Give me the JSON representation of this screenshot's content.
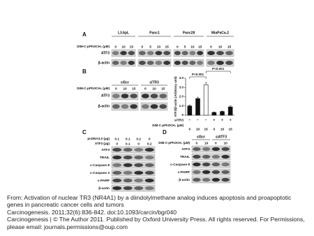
{
  "panel_a": {
    "label": "A",
    "cell_lines": [
      "L3.6pL",
      "Panc1",
      "Panc28",
      "MiaPaCa-2"
    ],
    "treatment_label": "DIM-C-pPhOCH₃ (μM)",
    "doses": [
      [
        "0",
        "10",
        "15"
      ],
      [
        "0",
        "5",
        "10",
        "15"
      ],
      [
        "0",
        "5",
        "10",
        "15"
      ],
      [
        "0",
        "10",
        "15"
      ]
    ],
    "rows": [
      "ATF3",
      "β-actin"
    ]
  },
  "panel_b": {
    "label": "B",
    "groups": [
      "siScr",
      "siTR3"
    ],
    "treatment_label": "DIM-C-pPhOCH₃ (μM)",
    "doses": [
      "0",
      "10",
      "15"
    ],
    "rows": [
      "ATF3",
      "β-actin"
    ],
    "chart": {
      "type": "bar",
      "y_label": "ATF3/β-actin (Arbitrary unit)",
      "values": [
        1.0,
        1.8,
        3.3,
        0.3,
        0.4,
        0.9
      ],
      "errors": [
        0.1,
        0.15,
        0.2,
        0.05,
        0.05,
        0.1
      ],
      "colors": [
        "#111111",
        "#111111",
        "#ffffff",
        "#111111",
        "#111111",
        "#111111"
      ],
      "ylim": [
        0,
        4
      ],
      "yticks": [
        0,
        {
          "value": 1,
          "label": "1.0"
        },
        {
          "value": 2,
          "label": "2.0"
        },
        {
          "value": 3,
          "label": "3.0"
        },
        {
          "value": 4,
          "label": "4.0"
        }
      ],
      "sirna_label": "siTR3",
      "sirna": [
        "−",
        "−",
        "−",
        "+",
        "+",
        "+"
      ],
      "dose_label": "DIM-C-pPhOCH₃ (μM)",
      "doses": [
        "0",
        "10",
        "15",
        "0",
        "10",
        "15"
      ],
      "annotations": [
        "P<0.001",
        "P<0.001"
      ]
    }
  },
  "panel_c": {
    "label": "C",
    "pcdna_label": "pcDNA3.0 (μg)",
    "pcdna": [
      "0.1",
      "0.1",
      "0.2",
      "0"
    ],
    "atf3_label": "ATF3 (μg)",
    "atf3": [
      "0",
      "0.1",
      "0",
      "0.2"
    ],
    "rows": [
      "ATF3",
      "TRAIL",
      "c-Caspase 8",
      "c-Caspase 3",
      "c-PARP",
      "β-actin"
    ]
  },
  "panel_d": {
    "label": "D",
    "groups": [
      "siScr",
      "siATF3"
    ],
    "treatment_label": "DIM-C-pPhOCH₃ (μM)",
    "doses": [
      "0",
      "10",
      "0",
      "10"
    ],
    "rows": [
      "ATF3",
      "TRAIL",
      "c-Caspase 8",
      "c-PARP",
      "β-actin"
    ]
  },
  "caption": {
    "source": "From: Activation of nuclear TR3 (NR4A1) by a diindolylmethane analog induces apoptosis and proapoptotic genes in pancreatic cancer cells and tumors",
    "citation": "Carcinogenesis. 2011;32(6):836-842. doi:10.1093/carcin/bgr040",
    "copyright": "Carcinogenesis | © The Author 2011. Published by Oxford University Press. All rights reserved. For Permissions, please email: journals.permissions@oup.com"
  }
}
